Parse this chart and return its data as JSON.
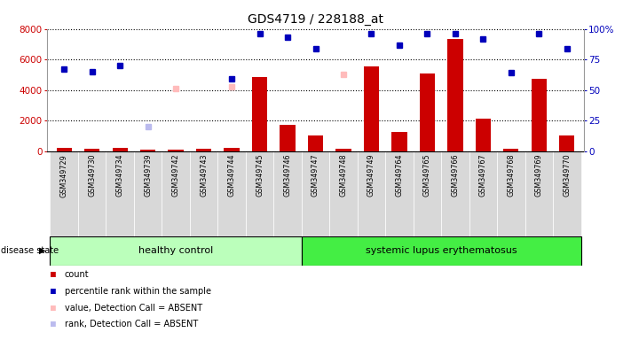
{
  "title": "GDS4719 / 228188_at",
  "samples": [
    "GSM349729",
    "GSM349730",
    "GSM349734",
    "GSM349739",
    "GSM349742",
    "GSM349743",
    "GSM349744",
    "GSM349745",
    "GSM349746",
    "GSM349747",
    "GSM349748",
    "GSM349749",
    "GSM349764",
    "GSM349765",
    "GSM349766",
    "GSM349767",
    "GSM349768",
    "GSM349769",
    "GSM349770"
  ],
  "count_values": [
    200,
    170,
    220,
    80,
    120,
    150,
    200,
    4850,
    1750,
    1050,
    170,
    5550,
    1250,
    5100,
    7350,
    2150,
    170,
    4750,
    1050
  ],
  "percentile_values": [
    67,
    65,
    70,
    null,
    null,
    null,
    59,
    96,
    93,
    84,
    null,
    96,
    87,
    96,
    96,
    92,
    64,
    96,
    84
  ],
  "absent_value_values": [
    null,
    null,
    null,
    null,
    4100,
    null,
    4200,
    null,
    null,
    null,
    5000,
    null,
    null,
    null,
    null,
    null,
    null,
    null,
    null
  ],
  "absent_rank_marker": [
    null,
    null,
    null,
    1600,
    null,
    null,
    null,
    null,
    null,
    null,
    null,
    null,
    null,
    null,
    null,
    null,
    null,
    null,
    null
  ],
  "healthy_control_count": 9,
  "ylim_left": [
    0,
    8000
  ],
  "ylim_right": [
    0,
    100
  ],
  "right_ticks": [
    0,
    25,
    50,
    75,
    100
  ],
  "left_ticks": [
    0,
    2000,
    4000,
    6000,
    8000
  ],
  "bar_color": "#cc0000",
  "dot_color_blue": "#0000bb",
  "dot_color_pink": "#ffbbbb",
  "dot_color_lightblue": "#bbbbee",
  "healthy_color": "#bbffbb",
  "lupus_color": "#44ee44",
  "label_count": "count",
  "label_percentile": "percentile rank within the sample",
  "label_absent_value": "value, Detection Call = ABSENT",
  "label_absent_rank": "rank, Detection Call = ABSENT",
  "right_tick_labels": [
    "0",
    "25",
    "50",
    "75",
    "100%"
  ]
}
